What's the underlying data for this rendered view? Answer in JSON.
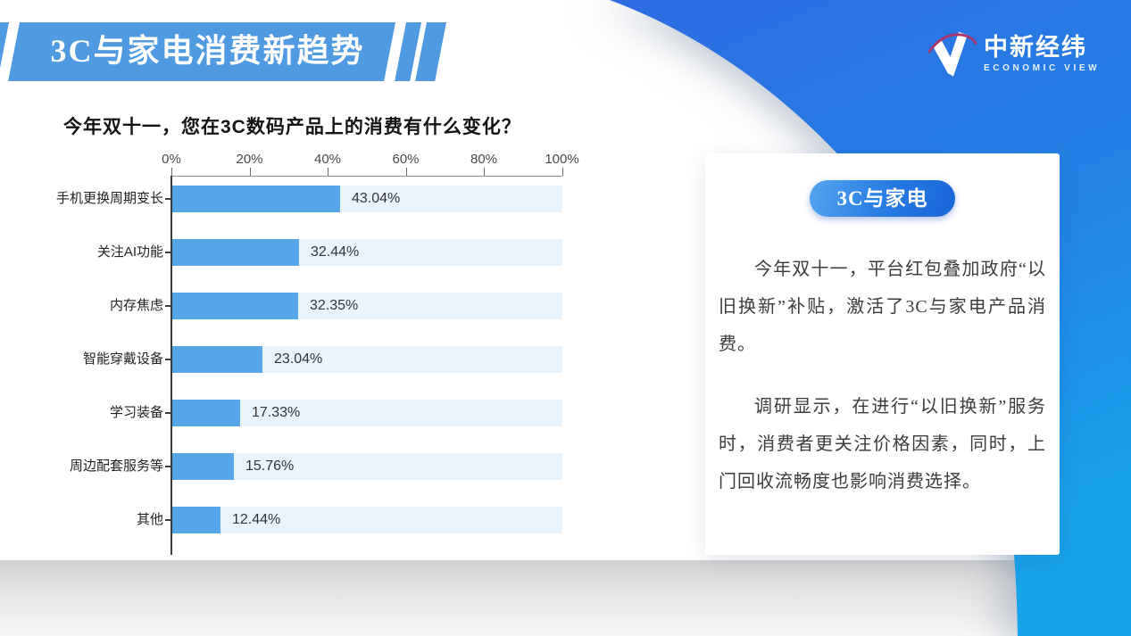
{
  "banner": {
    "title": "3C与家电消费新趋势"
  },
  "logo": {
    "name": "中新经纬",
    "subtitle": "ECONOMIC VIEW"
  },
  "chart_data": {
    "type": "bar",
    "orientation": "horizontal",
    "title": "今年双十一，您在3C数码产品上的消费有什么变化？",
    "categories": [
      "手机更换周期变长",
      "关注AI功能",
      "内存焦虑",
      "智能穿戴设备",
      "学习装备",
      "周边配套服务等",
      "其他"
    ],
    "values": [
      43.04,
      32.44,
      32.35,
      23.04,
      17.33,
      15.76,
      12.44
    ],
    "value_labels": [
      "43.04%",
      "32.44%",
      "32.35%",
      "23.04%",
      "17.33%",
      "15.76%",
      "12.44%"
    ],
    "x_ticks": [
      "0%",
      "20%",
      "40%",
      "60%",
      "80%",
      "100%"
    ],
    "xlim": [
      0,
      100
    ],
    "grid": false,
    "legend": "none",
    "bar_color": "#58a6ea",
    "track_color": "#e9f3fc"
  },
  "panel": {
    "badge": "3C与家电",
    "paragraphs": [
      "今年双十一，平台红包叠加政府“以旧换新”补贴，激活了3C与家电产品消费。",
      "调研显示，在进行“以旧换新”服务时，消费者更关注价格因素，同时，上门回收流畅度也影响消费选择。"
    ]
  },
  "colors": {
    "banner_blue": "#4f9ae1",
    "bar_blue": "#58a6ea",
    "bar_track": "#e9f3fc",
    "bg_gradient_top": "#2e6ce2",
    "bg_gradient_bottom": "#18a2ea",
    "badge_blue": "#2479e2"
  }
}
